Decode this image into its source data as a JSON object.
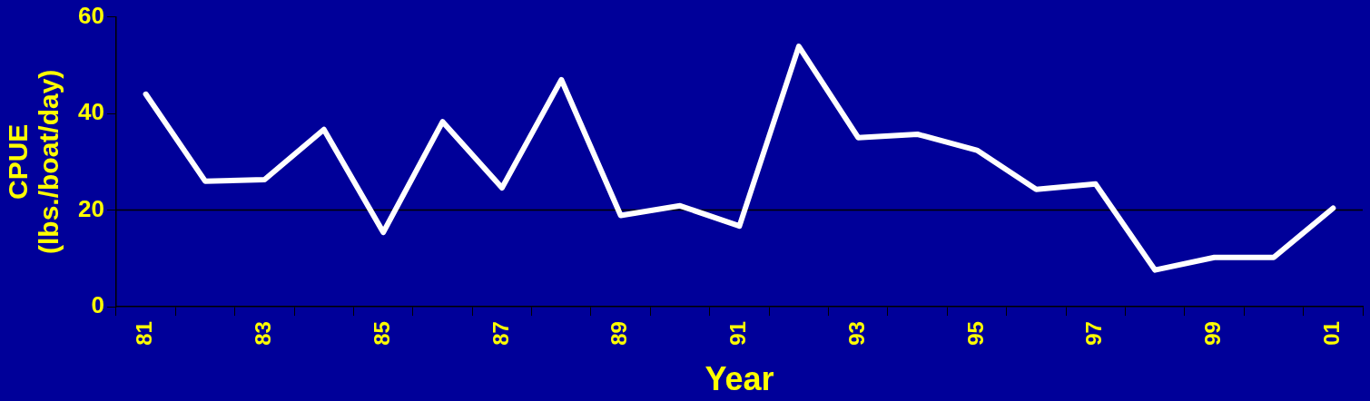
{
  "chart_data": {
    "type": "line",
    "xlabel": "Year",
    "ylabel": "CPUE\n(lbs./boat/day)",
    "categories": [
      "81",
      null,
      "83",
      null,
      "85",
      null,
      "87",
      null,
      "89",
      null,
      "91",
      null,
      "93",
      null,
      "95",
      null,
      "97",
      null,
      "99",
      null,
      "01"
    ],
    "series": [
      {
        "color": "#ffffff",
        "values": [
          44,
          26,
          26.3,
          36.7,
          15.4,
          38.3,
          24.6,
          47,
          18.9,
          20.9,
          16.7,
          53.9,
          35,
          35.7,
          32.4,
          24.3,
          25.4,
          7.6,
          10.2,
          10.2,
          20.4
        ]
      }
    ],
    "ylim": [
      0,
      60
    ],
    "yticks": [
      0,
      20,
      40,
      60
    ],
    "grid": false,
    "legend": false,
    "marker": "none",
    "line_style": "solid",
    "ref_lines": [
      {
        "axis": "y",
        "value": 20,
        "color": "#000000"
      }
    ]
  }
}
